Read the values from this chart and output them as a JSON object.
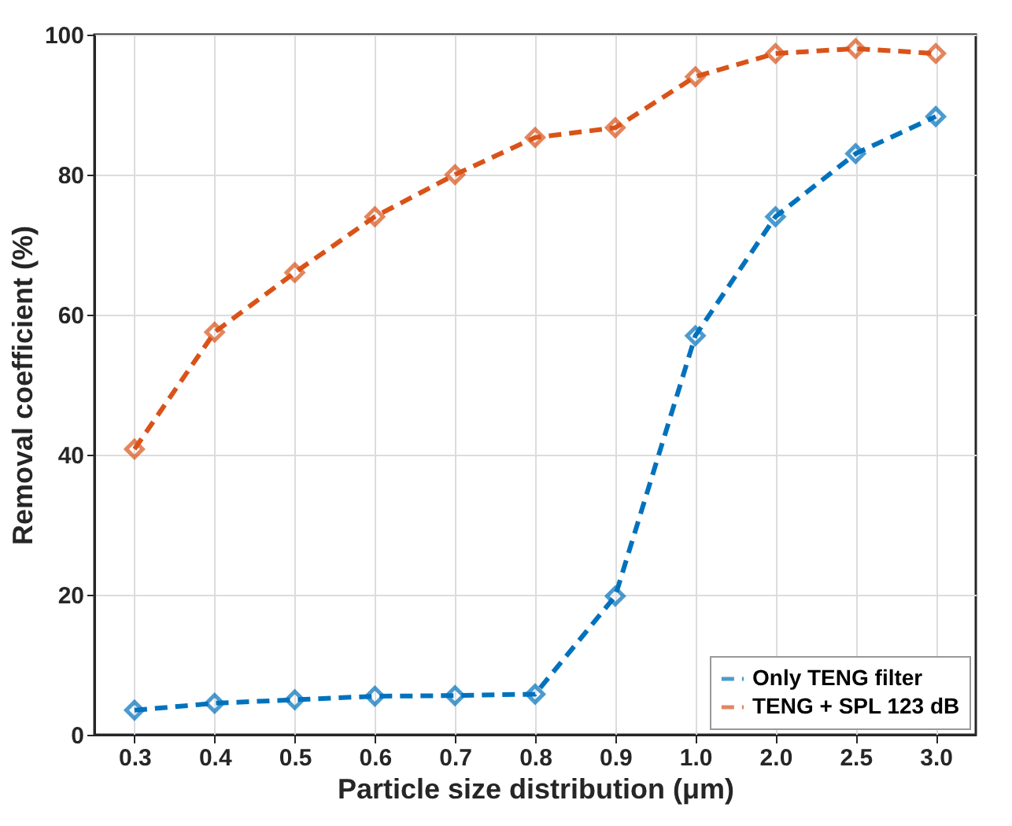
{
  "chart_data": {
    "type": "line",
    "xlabel": "Particle size distribution (μm)",
    "ylabel": "Removal coefficient (%)",
    "categories": [
      "0.3",
      "0.4",
      "0.5",
      "0.6",
      "0.7",
      "0.8",
      "0.9",
      "1.0",
      "2.0",
      "2.5",
      "3.0"
    ],
    "series": [
      {
        "name": "Only TENG filter",
        "color": "#0072bd",
        "line_style": "dashed",
        "values": [
          3.5,
          4.5,
          5,
          5.5,
          5.6,
          5.8,
          19.8,
          57,
          74,
          83,
          88.3
        ]
      },
      {
        "name": "TENG + SPL 123 dB",
        "color": "#d95319",
        "line_style": "dashed",
        "values": [
          40.8,
          57.5,
          66,
          74,
          80,
          85.3,
          86.7,
          94,
          97.3,
          98,
          97.3
        ]
      }
    ],
    "ylim": [
      0,
      100
    ],
    "yticks": [
      0,
      20,
      40,
      60,
      80,
      100
    ],
    "grid": true,
    "legend": "bottom right",
    "marker": "diamond"
  }
}
